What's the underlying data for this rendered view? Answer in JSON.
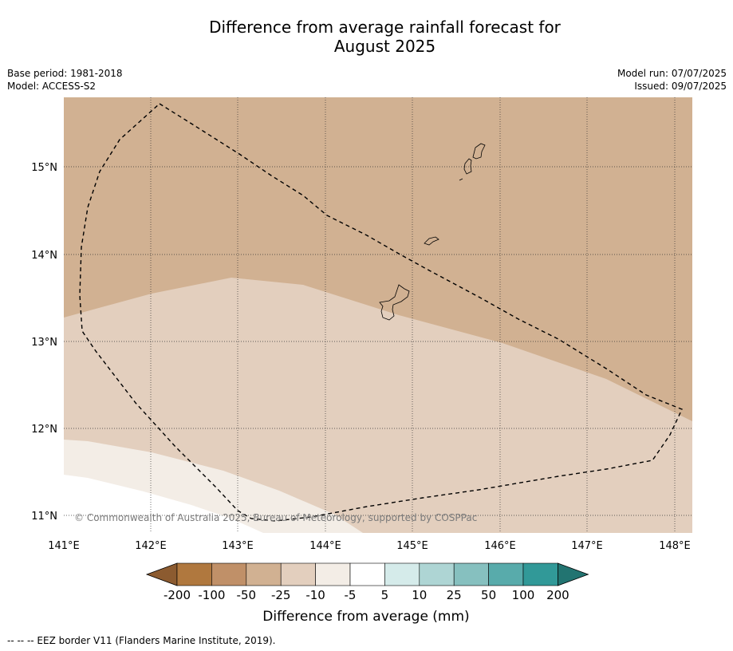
{
  "header": {
    "title_line1": "Difference from average rainfall forecast for",
    "title_line2": "August 2025",
    "base_period": "Base period: 1981-2018",
    "model": "Model: ACCESS-S2",
    "model_run": "Model run: 07/07/2025",
    "issued": "Issued: 09/07/2025"
  },
  "map": {
    "lon_labels": [
      "141°E",
      "142°E",
      "143°E",
      "144°E",
      "145°E",
      "146°E",
      "147°E",
      "148°E"
    ],
    "lat_labels": [
      "15°N",
      "14°N",
      "13°N",
      "12°N",
      "11°N"
    ],
    "copyright": "© Commonwealth of Australia 2025, Bureau of Meteorology, supported by COSPPac"
  },
  "colorbar": {
    "colors": [
      "#8c5b30",
      "#b0783e",
      "#c09068",
      "#d1b192",
      "#e3cfbe",
      "#f3ede6",
      "#ffffff",
      "#d5ebea",
      "#aed5d4",
      "#86c0bf",
      "#58abab",
      "#319998",
      "#227471"
    ],
    "labels": [
      "-200",
      "-100",
      "-50",
      "-25",
      "-10",
      "-5",
      "5",
      "10",
      "25",
      "50",
      "100",
      "200"
    ],
    "title": "Difference from average (mm)"
  },
  "footnote": "--  --  -- EEZ border V11 (Flanders Marine Institute, 2019)."
}
